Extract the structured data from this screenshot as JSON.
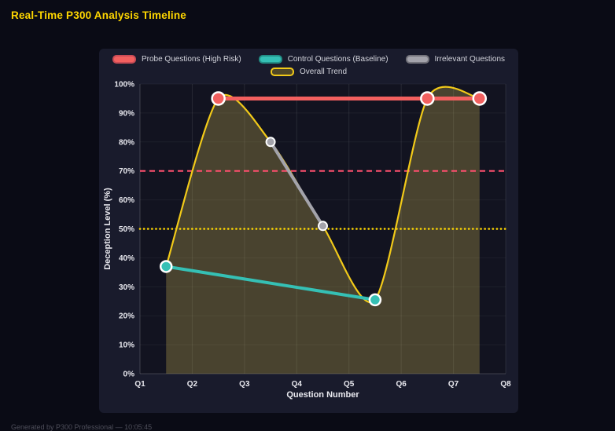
{
  "page": {
    "title": "Real-Time P300 Analysis Timeline",
    "footer": "Generated by P300 Professional — 10:05:45"
  },
  "colors": {
    "title": "#ffd700",
    "panel_bg": "#191b2c",
    "plot_bg": "#121320",
    "grid_h": "rgba(255,255,255,0.05)",
    "grid_v": "rgba(255,255,255,0.09)",
    "axis_line": "rgba(255,255,255,0.18)",
    "axis_text": "#e9e9ef",
    "marker_ring": "#ffffff",
    "probe": "#f2605f",
    "control": "#35c0b5",
    "irrelevant": "#a3a3ab",
    "trend": "#f2ca19",
    "trend_fill": "rgba(214,193,86,0.28)",
    "threshold_red": "#ff4f6e",
    "threshold_yellow": "#ffd700"
  },
  "legend": {
    "rows": [
      [
        {
          "label": "Probe Questions (High Risk)",
          "color": "#f2605f",
          "border": "#c94b55"
        },
        {
          "label": "Control Questions (Baseline)",
          "color": "#35c0b5",
          "border": "#238e86"
        },
        {
          "label": "Irrelevant Questions",
          "color": "#a3a3ab",
          "border": "#73737b"
        }
      ],
      [
        {
          "label": "Overall Trend",
          "color": "rgba(242,202,25,0.25)",
          "border": "#f2ca19"
        }
      ]
    ]
  },
  "chart_data": {
    "type": "line",
    "xlabel": "Question Number",
    "ylabel": "Deception Level (%)",
    "x_range": [
      1,
      8
    ],
    "y_range": [
      0,
      100
    ],
    "x_tick_values": [
      1,
      2,
      3,
      4,
      5,
      6,
      7,
      8
    ],
    "x_tick_labels": [
      "Q1",
      "Q2",
      "Q3",
      "Q4",
      "Q5",
      "Q6",
      "Q7",
      "Q8"
    ],
    "y_tick_values": [
      0,
      10,
      20,
      30,
      40,
      50,
      60,
      70,
      80,
      90,
      100
    ],
    "y_tick_labels": [
      "0%",
      "10%",
      "20%",
      "30%",
      "40%",
      "50%",
      "60%",
      "70%",
      "80%",
      "90%",
      "100%"
    ],
    "thresholds": [
      {
        "value": 70,
        "color": "#ff4f6e",
        "dash": "7 5",
        "width": 2,
        "linecap": "butt"
      },
      {
        "value": 50,
        "color": "#ffd700",
        "dash": "0.1 5",
        "width": 2.6,
        "linecap": "round"
      }
    ],
    "series": [
      {
        "id": "trend",
        "name": "Overall Trend",
        "points": [
          [
            1.5,
            37
          ],
          [
            2.5,
            95
          ],
          [
            3.5,
            80
          ],
          [
            4.5,
            51
          ],
          [
            5.5,
            25.5
          ],
          [
            6.5,
            95
          ],
          [
            7.5,
            95
          ]
        ],
        "color": "#f2ca19",
        "width": 2.2,
        "smooth": true,
        "fill": true,
        "fill_color": "rgba(214,193,86,0.28)",
        "marker_radius": 0,
        "marker_stroke": 0
      },
      {
        "id": "irrelevant",
        "name": "Irrelevant Questions",
        "points": [
          [
            3.5,
            80
          ],
          [
            4.5,
            51
          ]
        ],
        "color": "#a3a3ab",
        "width": 4,
        "smooth": false,
        "fill": false,
        "marker_radius": 5.5,
        "marker_stroke": 2
      },
      {
        "id": "control",
        "name": "Control Questions (Baseline)",
        "points": [
          [
            1.5,
            37
          ],
          [
            5.5,
            25.5
          ]
        ],
        "color": "#35c0b5",
        "width": 4,
        "smooth": false,
        "fill": false,
        "marker_radius": 7,
        "marker_stroke": 2.5
      },
      {
        "id": "probe",
        "name": "Probe Questions (High Risk)",
        "points": [
          [
            2.5,
            95
          ],
          [
            6.5,
            95
          ],
          [
            7.5,
            95
          ]
        ],
        "color": "#f2605f",
        "width": 5,
        "smooth": false,
        "fill": false,
        "marker_radius": 8,
        "marker_stroke": 2.5
      }
    ]
  }
}
